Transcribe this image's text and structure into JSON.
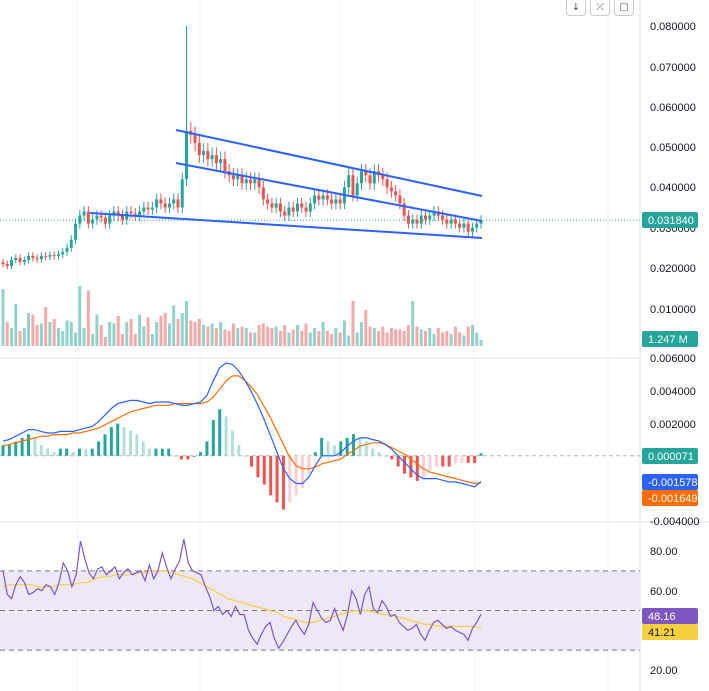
{
  "toolbar": {
    "buttons": [
      {
        "name": "scroll-down-button",
        "icon": "arrow-down-icon",
        "glyph": "↓"
      },
      {
        "name": "collapse-button",
        "icon": "collapse-icon",
        "glyph": "⤫"
      },
      {
        "name": "settings-button",
        "icon": "square-icon",
        "glyph": "▢"
      }
    ]
  },
  "colors": {
    "up": "#26a69a",
    "down": "#ef5350",
    "trendline": "#2962ff",
    "macd": "#2962ff",
    "signal": "#ff6d00",
    "rsi": "#7e57c2",
    "rsi_ma": "#f5d142",
    "rsi_band": "#ede7f6",
    "grid": "#f0f3fa"
  },
  "chart_data": [
    {
      "type": "candlestick",
      "panel": "price",
      "yticks": [
        "0.080000",
        "0.070000",
        "0.060000",
        "0.050000",
        "0.040000",
        "0.030000",
        "0.020000",
        "0.010000"
      ],
      "ylim": [
        0.0,
        0.082
      ],
      "last_price_label": "0.031840",
      "last_price": 0.03184,
      "volume_label": "1.247 M",
      "closes": [
        0.021,
        0.0205,
        0.022,
        0.0225,
        0.0215,
        0.022,
        0.023,
        0.0225,
        0.0222,
        0.023,
        0.0228,
        0.0232,
        0.023,
        0.0234,
        0.024,
        0.025,
        0.027,
        0.031,
        0.033,
        0.034,
        0.031,
        0.032,
        0.033,
        0.0325,
        0.031,
        0.033,
        0.034,
        0.033,
        0.032,
        0.034,
        0.0335,
        0.033,
        0.034,
        0.035,
        0.0345,
        0.035,
        0.037,
        0.036,
        0.035,
        0.036,
        0.037,
        0.035,
        0.042,
        0.054,
        0.053,
        0.051,
        0.048,
        0.049,
        0.047,
        0.048,
        0.046,
        0.047,
        0.044,
        0.043,
        0.042,
        0.043,
        0.041,
        0.042,
        0.041,
        0.042,
        0.04,
        0.037,
        0.036,
        0.035,
        0.036,
        0.034,
        0.033,
        0.035,
        0.034,
        0.036,
        0.035,
        0.034,
        0.036,
        0.038,
        0.037,
        0.038,
        0.037,
        0.036,
        0.037,
        0.036,
        0.04,
        0.043,
        0.038,
        0.041,
        0.044,
        0.043,
        0.041,
        0.044,
        0.043,
        0.042,
        0.04,
        0.039,
        0.038,
        0.036,
        0.033,
        0.031,
        0.032,
        0.031,
        0.033,
        0.032,
        0.033,
        0.034,
        0.033,
        0.032,
        0.031,
        0.032,
        0.031,
        0.03,
        0.031,
        0.029,
        0.03,
        0.031,
        0.0318
      ],
      "volumes": [
        3.8,
        1.6,
        1.2,
        2.8,
        1.0,
        1.2,
        2.2,
        2.1,
        1.4,
        1.5,
        2.6,
        1.6,
        1.8,
        1.2,
        1.0,
        1.7,
        1.6,
        0.9,
        4.0,
        1.2,
        3.7,
        0.8,
        2.1,
        1.4,
        0.6,
        1.6,
        1.5,
        2.0,
        0.8,
        1.6,
        1.8,
        0.8,
        2.1,
        1.3,
        1.9,
        0.8,
        1.6,
        2.0,
        2.2,
        1.5,
        2.7,
        1.8,
        2.2,
        3.0,
        1.7,
        1.6,
        1.8,
        1.4,
        1.3,
        1.5,
        1.2,
        1.6,
        1.1,
        1.0,
        1.5,
        1.2,
        1.3,
        1.2,
        0.9,
        0.9,
        1.4,
        1.5,
        1.3,
        1.2,
        1.3,
        1.0,
        1.4,
        0.9,
        1.1,
        1.4,
        1.0,
        1.5,
        0.9,
        1.2,
        1.0,
        1.6,
        1.0,
        0.8,
        1.2,
        0.9,
        1.7,
        0.7,
        3.0,
        0.9,
        1.6,
        2.4,
        1.3,
        1.2,
        1.0,
        1.3,
        0.9,
        1.2,
        1.1,
        1.1,
        1.0,
        1.4,
        3.0,
        1.3,
        1.1,
        1.0,
        1.2,
        0.8,
        1.2,
        0.9,
        1.0,
        0.8,
        1.3,
        0.9,
        0.7,
        1.3,
        1.4,
        0.9,
        0.4
      ]
    },
    {
      "type": "line+histogram",
      "panel": "macd",
      "yticks": [
        "0.006000",
        "0.004000",
        "0.002000",
        "-0.004000"
      ],
      "ylim": [
        -0.004,
        0.0065
      ],
      "series": [
        {
          "name": "",
          "label": "0.000071",
          "kind": "histogram_last"
        },
        {
          "name": "",
          "label": "-0.001578",
          "kind": "macd_last"
        },
        {
          "name": "",
          "label": "-0.001649",
          "kind": "signal_last"
        }
      ],
      "macd": [
        0.0009,
        0.001,
        0.0012,
        0.0014,
        0.0016,
        0.0016,
        0.0015,
        0.0014,
        0.0014,
        0.0015,
        0.0015,
        0.0015,
        0.0016,
        0.0017,
        0.0018,
        0.0021,
        0.0025,
        0.0029,
        0.0032,
        0.0033,
        0.0034,
        0.0034,
        0.0033,
        0.0032,
        0.0033,
        0.0033,
        0.0033,
        0.0032,
        0.0031,
        0.0031,
        0.0032,
        0.0033,
        0.0037,
        0.0046,
        0.0054,
        0.0057,
        0.0056,
        0.0052,
        0.0046,
        0.0039,
        0.0031,
        0.0022,
        0.0012,
        0.0002,
        -0.0008,
        -0.0014,
        -0.0017,
        -0.0017,
        -0.0013,
        -0.0006,
        0.0,
        0.0,
        0.0,
        0.0002,
        0.0006,
        0.0009,
        0.0011,
        0.0011,
        0.001,
        0.0009,
        0.0007,
        0.0004,
        0.0,
        -0.0004,
        -0.0008,
        -0.0012,
        -0.0014,
        -0.0014,
        -0.0014,
        -0.0015,
        -0.0016,
        -0.0016,
        -0.0017,
        -0.0018,
        -0.0019,
        -0.00158
      ],
      "signal": [
        0.0006,
        0.0007,
        0.0008,
        0.0009,
        0.001,
        0.0011,
        0.0012,
        0.0012,
        0.0013,
        0.0013,
        0.0013,
        0.0014,
        0.0014,
        0.0015,
        0.0016,
        0.0017,
        0.0019,
        0.0021,
        0.0023,
        0.0025,
        0.0027,
        0.0028,
        0.0029,
        0.003,
        0.0031,
        0.0031,
        0.0031,
        0.0032,
        0.0032,
        0.0032,
        0.0032,
        0.0032,
        0.0033,
        0.0036,
        0.0041,
        0.0046,
        0.0049,
        0.0049,
        0.0046,
        0.0042,
        0.0037,
        0.003,
        0.0023,
        0.0015,
        0.0007,
        -0.0001,
        -0.0006,
        -0.0008,
        -0.0008,
        -0.0007,
        -0.0005,
        -0.0004,
        -0.0003,
        -0.0002,
        0.0001,
        0.0003,
        0.0006,
        0.0007,
        0.0008,
        0.0008,
        0.0007,
        0.0005,
        0.0003,
        0.0001,
        -0.0002,
        -0.0005,
        -0.0008,
        -0.001,
        -0.0011,
        -0.0012,
        -0.0013,
        -0.0014,
        -0.0015,
        -0.0016,
        -0.0017,
        -0.00165
      ]
    },
    {
      "type": "line",
      "panel": "rsi",
      "yticks": [
        "80.00",
        "60.00",
        "20.00"
      ],
      "ylim": [
        15,
        90
      ],
      "rsi_label": "48.16",
      "rsi_ma_label": "41.21",
      "bands": [
        70,
        50,
        30
      ],
      "rsi": [
        70,
        58,
        56,
        63,
        67,
        64,
        58,
        59,
        61,
        60,
        63,
        62,
        58,
        64,
        74,
        70,
        62,
        68,
        85,
        76,
        69,
        66,
        71,
        72,
        68,
        70,
        72,
        66,
        69,
        71,
        68,
        69,
        70,
        65,
        73,
        66,
        70,
        79,
        72,
        66,
        71,
        75,
        86,
        74,
        70,
        69,
        68,
        62,
        57,
        50,
        52,
        48,
        50,
        47,
        52,
        48,
        48,
        40,
        36,
        33,
        38,
        42,
        44,
        36,
        31,
        34,
        38,
        42,
        45,
        41,
        38,
        43,
        54,
        50,
        46,
        44,
        45,
        51,
        45,
        40,
        48,
        60,
        56,
        48,
        58,
        62,
        51,
        49,
        55,
        52,
        47,
        48,
        44,
        42,
        40,
        41,
        43,
        38,
        35,
        40,
        44,
        45,
        43,
        41,
        42,
        40,
        39,
        38,
        35,
        41,
        44,
        48.16
      ],
      "rsi_ma": [
        62,
        63,
        63,
        63,
        63,
        62,
        62,
        62,
        63,
        63,
        63,
        64,
        64,
        66,
        67,
        67,
        68,
        68,
        68,
        69,
        69,
        70,
        70,
        70,
        69,
        68,
        67,
        66,
        64,
        62,
        60,
        58,
        56,
        55,
        54,
        53,
        52,
        51,
        50,
        49,
        47,
        46,
        45,
        44,
        44,
        45,
        46,
        47,
        48,
        49,
        50,
        50,
        50,
        49,
        48,
        48,
        47,
        46,
        45,
        44,
        43,
        43,
        42,
        42,
        42,
        42,
        42,
        42,
        41.21
      ]
    }
  ]
}
